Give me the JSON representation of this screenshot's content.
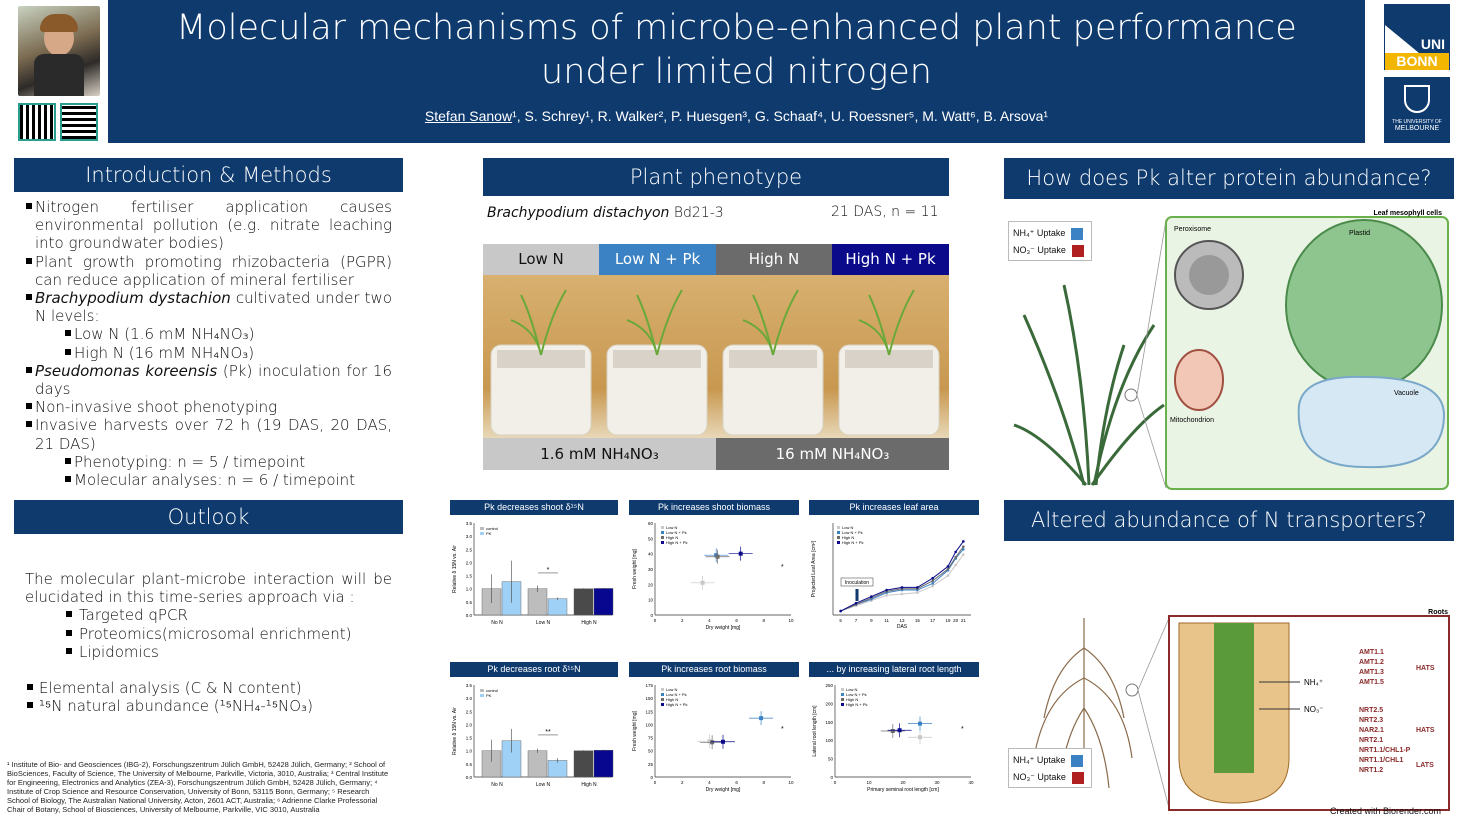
{
  "header": {
    "title_line1": "Molecular mechanisms of microbe-enhanced plant performance",
    "title_line2": "under limited nitrogen",
    "lead_author": "Stefan Sanow",
    "authors_rest": "¹, S. Schrey¹, R. Walker², P. Huesgen³, G. Schaaf⁴, U. Roessner⁵, M. Watt⁶, B. Arsova¹",
    "logo_uni": "UNI",
    "logo_bonn": "BONN",
    "logo_melb_1": "THE UNIVERSITY OF",
    "logo_melb_2": "MELBOURNE"
  },
  "intro": {
    "title": "Introduction & Methods",
    "b1": "Nitrogen fertiliser application causes environmental pollution (e.g. nitrate leaching into groundwater bodies)",
    "b2": "Plant growth promoting rhizobacteria (PGPR) can reduce application of mineral fertiliser",
    "b3_i": "Brachypodium dystachion",
    "b3": " cultivated under two N levels:",
    "b3a": "Low N (1.6 mM NH₄NO₃)",
    "b3b": "High N (16 mM NH₄NO₃)",
    "b4_i": "Pseudomonas koreensis",
    "b4": " (Pk) inoculation for 16 days",
    "b5": "Non-invasive shoot phenotyping",
    "b6": "Invasive harvests over 72 h (19 DAS, 20 DAS, 21 DAS)",
    "b6a": "Phenotyping: n = 5 / timepoint",
    "b6b": "Molecular analyses: n = 6 / timepoint"
  },
  "outlook": {
    "title": "Outlook",
    "p1": "The molecular plant-microbe interaction will be elucidated in this time-series approach via :",
    "s1": "Targeted qPCR",
    "s2": "Proteomics(microsomal enrichment)",
    "s3": "Lipidomics",
    "b1": "Elemental analysis (C & N content)",
    "b2": "¹⁵N natural abundance (¹⁵NH₄-¹⁵NO₃)"
  },
  "footnote": "¹ Institute of Bio- and Geosciences (IBG-2), Forschungszentrum Jülich GmbH, 52428 Jülich, Germany; ² School of BioSciences, Faculty of Science, The University of Melbourne, Parkville, Victoria, 3010, Australia; ³ Central Institute for Engineering, Electronics and Analytics (ZEA-3), Forschungszentrum Jülich GmbH, 52428 Jülich, Germany; ⁴ Institute of Crop Science and Resource Conservation, University of Bonn, 53115 Bonn, Germany; ⁵ Research School of Biology, The Australian National University, Acton, 2601 ACT, Australia; ⁶ Adrienne Clarke Professorial Chair of Botany, School of Biosciences, University of Melbourne, Parkville, VIC 3010, Australia",
  "phenotype": {
    "title": "Plant phenotype",
    "species": "Brachypodium distachyon",
    "accession": " Bd21-3",
    "das": "21 DAS, n = 11",
    "col1": "Low N",
    "col2": "Low N + Pk",
    "col3": "High N",
    "col4": "High N + Pk",
    "low_conc": "1.6 mM NH₄NO₃",
    "high_conc": "16 mM NH₄NO₃"
  },
  "protein": {
    "title": "How does Pk alter protein abundance?",
    "leg1": "NH₄⁺ Uptake",
    "leg2": "NO₃⁻ Uptake",
    "cell_label": "Leaf mesophyll cells",
    "peroxisome": "Peroxisome",
    "plastid": "Plastid",
    "mito": "Mitochondrion",
    "vacuole": "Vacuole"
  },
  "transport": {
    "title": "Altered abundance of N transporters?",
    "leg1": "NH₄⁺ Uptake",
    "leg2": "NO₃⁻ Uptake",
    "roots": "Roots",
    "nh4": "NH₄⁺",
    "no3": "NO₃⁻",
    "hats": "HATS",
    "lats": "LATS",
    "credit": "Created with Biorender.com",
    "amt": [
      "AMT1.1",
      "AMT1.2",
      "AMT1.3",
      "AMT1.5"
    ],
    "nrt_hats": [
      "NRT2.5",
      "NRT2.3",
      "NAR2.1",
      "NRT2.1",
      "NRT1.1/CHL1-P"
    ],
    "nrt_lats": [
      "NRT1.1/CHL1",
      "NRT1.2"
    ]
  },
  "colors": {
    "navy": "#0e3a6e",
    "lowN": "#c8c8c8",
    "lowNPk": "#3b82c4",
    "highN": "#6b6b6b",
    "highNPk": "#0a0a8a",
    "bar_low": "#bdbdbd",
    "bar_lowpk": "#9fd0f5",
    "bar_high": "#4a4a4a",
    "bar_highpk": "#070790"
  },
  "chart_data": [
    {
      "type": "bar",
      "title": "Pk decreases shoot δ¹⁵N",
      "ylabel": "Relative δ 15N vs. Air",
      "ylim": [
        0,
        3.5
      ],
      "categories": [
        "No N",
        "Low N",
        "High N"
      ],
      "series": [
        {
          "name": "control",
          "values": [
            1.0,
            1.0,
            1.0
          ],
          "err": [
            0.55,
            0.12,
            0.02
          ]
        },
        {
          "name": "PK",
          "values": [
            1.27,
            0.62,
            1.01
          ],
          "err": [
            0.8,
            0.05,
            0.02
          ]
        }
      ],
      "annotation": "*"
    },
    {
      "type": "scatter",
      "title": "Pk increases shoot biomass",
      "xlabel": "Dry weight [mg]",
      "ylabel": "Fresh weight [mg]",
      "xlim": [
        0,
        10
      ],
      "ylim": [
        0,
        60
      ],
      "series": [
        {
          "name": "Low N",
          "points": [
            [
              3.5,
              21
            ]
          ]
        },
        {
          "name": "Low N + Pk",
          "points": [
            [
              4.5,
              39
            ]
          ]
        },
        {
          "name": "High N",
          "points": [
            [
              4.6,
              38
            ]
          ]
        },
        {
          "name": "High N + Pk",
          "points": [
            [
              6.3,
              40
            ]
          ]
        }
      ],
      "annotation": "*"
    },
    {
      "type": "line",
      "title": "Pk increases leaf area",
      "xlabel": "DAS",
      "ylabel": "Projected Leaf Area [cm²]",
      "annotation": "Inoculation",
      "x": [
        5,
        7,
        9,
        11,
        13,
        15,
        17,
        19,
        20,
        21
      ],
      "series": [
        {
          "name": "Low N",
          "values": [
            0.3,
            0.7,
            1.1,
            1.5,
            1.6,
            1.7,
            2.2,
            3.0,
            3.8,
            4.6
          ]
        },
        {
          "name": "Low N + Pk",
          "values": [
            0.3,
            0.8,
            1.2,
            1.7,
            1.9,
            1.9,
            2.4,
            3.4,
            4.3,
            5.0
          ]
        },
        {
          "name": "High N",
          "values": [
            0.3,
            0.8,
            1.3,
            1.8,
            2.0,
            2.0,
            2.6,
            3.5,
            4.4,
            5.2
          ]
        },
        {
          "name": "High N + Pk",
          "values": [
            0.3,
            0.9,
            1.4,
            1.9,
            2.1,
            2.1,
            2.8,
            3.7,
            4.8,
            5.6
          ]
        }
      ]
    },
    {
      "type": "bar",
      "title": "Pk decreases root δ¹⁵N",
      "ylabel": "Relative δ 15N vs. Air",
      "ylim": [
        0,
        3.5
      ],
      "categories": [
        "No N",
        "Low N",
        "High N"
      ],
      "series": [
        {
          "name": "control",
          "values": [
            1.0,
            1.0,
            1.0
          ],
          "err": [
            0.42,
            0.08,
            0.02
          ]
        },
        {
          "name": "PK",
          "values": [
            1.38,
            0.63,
            1.02
          ],
          "err": [
            0.45,
            0.09,
            0.02
          ]
        }
      ],
      "annotation": "**"
    },
    {
      "type": "scatter",
      "title": "Pk increases root biomass",
      "xlabel": "Dry weight [mg]",
      "ylabel": "Fresh weight [mg]",
      "xlim": [
        0,
        10
      ],
      "ylim": [
        0,
        175
      ],
      "series": [
        {
          "name": "Low N",
          "points": [
            [
              4.0,
              68
            ]
          ]
        },
        {
          "name": "Low N + Pk",
          "points": [
            [
              7.8,
              112
            ]
          ]
        },
        {
          "name": "High N",
          "points": [
            [
              4.2,
              66
            ]
          ]
        },
        {
          "name": "High N + Pk",
          "points": [
            [
              5.0,
              67
            ]
          ]
        }
      ],
      "annotation": "*"
    },
    {
      "type": "scatter",
      "title": "... by increasing lateral root length",
      "xlabel": "Primary seminal root length [cm]",
      "ylabel": "Lateral root length [cm]",
      "xlim": [
        0,
        40
      ],
      "ylim": [
        0,
        250
      ],
      "series": [
        {
          "name": "Low N",
          "points": [
            [
              25,
              108
            ]
          ]
        },
        {
          "name": "Low N + Pk",
          "points": [
            [
              25,
              145
            ]
          ]
        },
        {
          "name": "High N",
          "points": [
            [
              17,
              125
            ]
          ]
        },
        {
          "name": "High N + Pk",
          "points": [
            [
              19,
              127
            ]
          ]
        }
      ],
      "annotation": "*"
    }
  ]
}
